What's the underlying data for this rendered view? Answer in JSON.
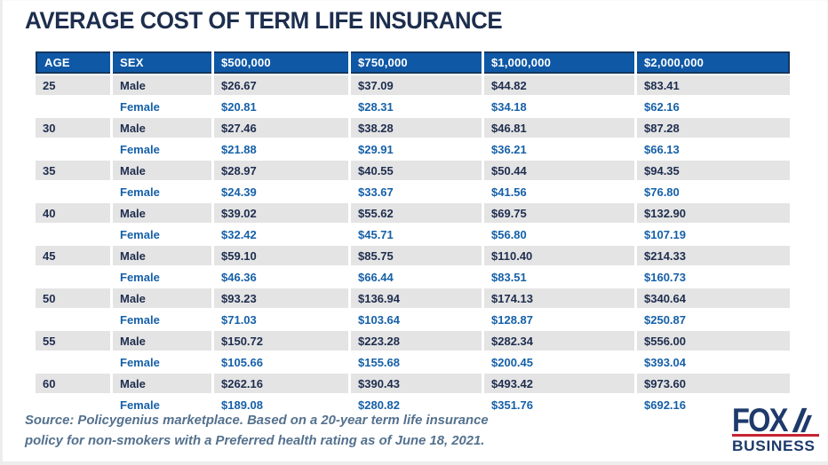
{
  "header": {
    "title": "AVERAGE COST OF TERM LIFE INSURANCE"
  },
  "chart_data": {
    "type": "table",
    "title": "AVERAGE COST OF TERM LIFE INSURANCE",
    "columns": [
      "AGE",
      "SEX",
      "$500,000",
      "$750,000",
      "$1,000,000",
      "$2,000,000"
    ],
    "rows": [
      {
        "age": "25",
        "sex": "Male",
        "values": [
          "$26.67",
          "$37.09",
          "$44.82",
          "$83.41"
        ]
      },
      {
        "age": "",
        "sex": "Female",
        "values": [
          "$20.81",
          "$28.31",
          "$34.18",
          "$62.16"
        ]
      },
      {
        "age": "30",
        "sex": "Male",
        "values": [
          "$27.46",
          "$38.28",
          "$46.81",
          "$87.28"
        ]
      },
      {
        "age": "",
        "sex": "Female",
        "values": [
          "$21.88",
          "$29.91",
          "$36.21",
          "$66.13"
        ]
      },
      {
        "age": "35",
        "sex": "Male",
        "values": [
          "$28.97",
          "$40.55",
          "$50.44",
          "$94.35"
        ]
      },
      {
        "age": "",
        "sex": "Female",
        "values": [
          "$24.39",
          "$33.67",
          "$41.56",
          "$76.80"
        ]
      },
      {
        "age": "40",
        "sex": "Male",
        "values": [
          "$39.02",
          "$55.62",
          "$69.75",
          "$132.90"
        ]
      },
      {
        "age": "",
        "sex": "Female",
        "values": [
          "$32.42",
          "$45.71",
          "$56.80",
          "$107.19"
        ]
      },
      {
        "age": "45",
        "sex": "Male",
        "values": [
          "$59.10",
          "$85.75",
          "$110.40",
          "$214.33"
        ]
      },
      {
        "age": "",
        "sex": "Female",
        "values": [
          "$46.36",
          "$66.44",
          "$83.51",
          "$160.73"
        ]
      },
      {
        "age": "50",
        "sex": "Male",
        "values": [
          "$93.23",
          "$136.94",
          "$174.13",
          "$340.64"
        ]
      },
      {
        "age": "",
        "sex": "Female",
        "values": [
          "$71.03",
          "$103.64",
          "$128.87",
          "$250.87"
        ]
      },
      {
        "age": "55",
        "sex": "Male",
        "values": [
          "$150.72",
          "$223.28",
          "$282.34",
          "$556.00"
        ]
      },
      {
        "age": "",
        "sex": "Female",
        "values": [
          "$105.66",
          "$155.68",
          "$200.45",
          "$393.04"
        ]
      },
      {
        "age": "60",
        "sex": "Male",
        "values": [
          "$262.16",
          "$390.43",
          "$493.42",
          "$973.60"
        ]
      },
      {
        "age": "",
        "sex": "Female",
        "values": [
          "$189.08",
          "$280.82",
          "$351.76",
          "$692.16"
        ]
      }
    ]
  },
  "footer": {
    "source_lines": [
      "Source: Policygenius marketplace. Based on a 20-year term life insurance",
      "policy for non-smokers with a Preferred health rating as of June 18, 2021."
    ]
  },
  "logo": {
    "fox": "FOX",
    "business": "BUSINESS"
  },
  "colors": {
    "title_text": "#1d2e4e",
    "header_bg": "#0f58a6",
    "header_border": "#14365f",
    "male_row_bg": "#e4e4e4",
    "male_text": "#1e2d4e",
    "female_text": "#1560a8",
    "source_text": "#54718e",
    "logo_navy": "#1d3a6b",
    "logo_red": "#c42433"
  }
}
